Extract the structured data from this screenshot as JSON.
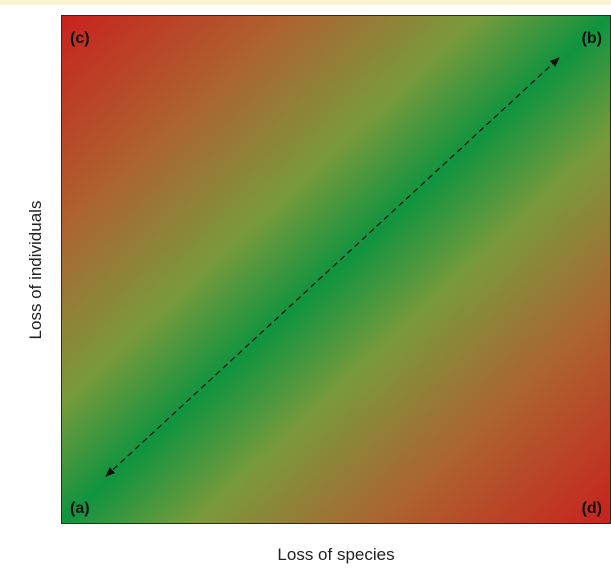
{
  "diagram": {
    "corner_labels": {
      "a": "(a)",
      "b": "(b)",
      "c": "(c)",
      "d": "(d)"
    },
    "x_axis_label": "Loss of species",
    "y_axis_label": "Loss of individuals",
    "gradient": {
      "diagonal_color": "#10943f",
      "mid_color": "#799a3c",
      "transition_color": "#ad6330",
      "corner_color": "#c8221d"
    },
    "arrow": {
      "style": "dashed",
      "direction": "bidirectional",
      "from_corner": "a",
      "to_corner": "b"
    }
  }
}
